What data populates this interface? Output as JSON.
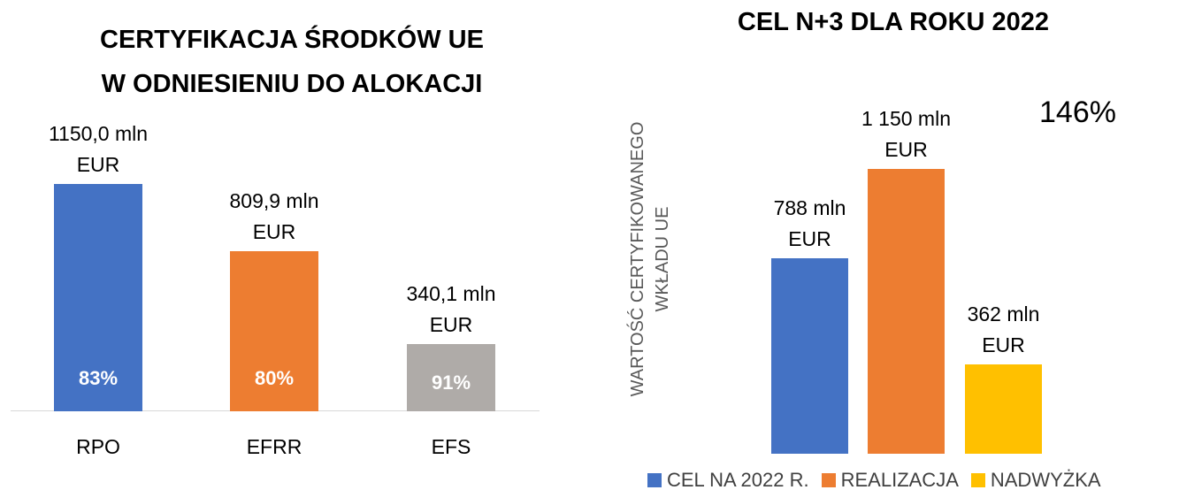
{
  "chart_data": [
    {
      "type": "bar",
      "title": [
        "CERTYFIKACJA ŚRODKÓW UE",
        "W ODNIESIENIU DO ALOKACJI"
      ],
      "categories": [
        "RPO",
        "EFRR",
        "EFS"
      ],
      "values": [
        1150.0,
        809.9,
        340.1
      ],
      "value_labels": [
        "1150,0 mln EUR",
        "809,9 mln EUR",
        "340,1 mln EUR"
      ],
      "inner_labels": [
        "83%",
        "80%",
        "91%"
      ],
      "colors": [
        "#4472c4",
        "#ed7d31",
        "#afaba8"
      ],
      "ylim": [
        0,
        1400
      ]
    },
    {
      "type": "bar",
      "title": "CEL N+3 DLA ROKU 2022",
      "y_label": "WARTOŚĆ CERTYFIKOWANEGO WKŁADU UE",
      "annotation": "146%",
      "series": [
        {
          "name": "CEL NA 2022 R.",
          "color": "#4472c4",
          "values": [
            788
          ],
          "value_labels": [
            "788 mln EUR"
          ]
        },
        {
          "name": "REALIZACJA",
          "color": "#ed7d31",
          "values": [
            1150
          ],
          "value_labels": [
            "1 150 mln EUR"
          ]
        },
        {
          "name": "NADWYŻKA",
          "color": "#ffc000",
          "values": [
            362
          ],
          "value_labels": [
            "362 mln EUR"
          ]
        }
      ],
      "legend": "bottom",
      "ylim": [
        0,
        1400
      ]
    }
  ]
}
